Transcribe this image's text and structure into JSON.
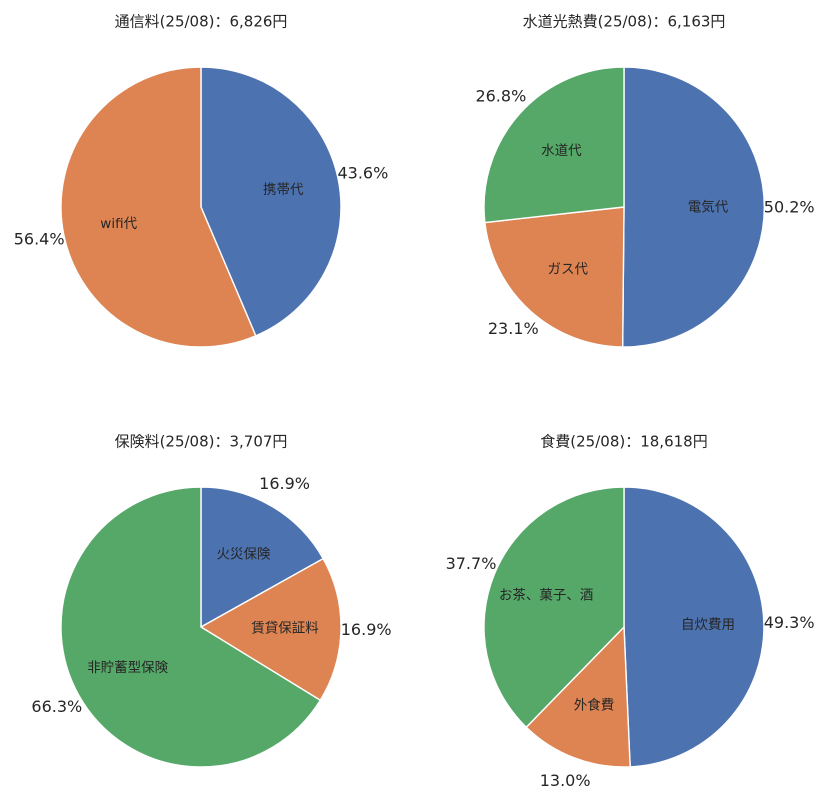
{
  "colors": {
    "blue": "#4c72b0",
    "orange": "#dd8452",
    "green": "#55a868"
  },
  "chart_data": [
    {
      "type": "pie",
      "title": "通信料(25/08)：6,826円",
      "slices": [
        {
          "label": "携帯代",
          "value": 43.6,
          "pct_label": "43.6%",
          "color": "#4c72b0"
        },
        {
          "label": "wifi代",
          "value": 56.4,
          "pct_label": "56.4%",
          "color": "#dd8452"
        }
      ]
    },
    {
      "type": "pie",
      "title": "水道光熱費(25/08)：6,163円",
      "slices": [
        {
          "label": "電気代",
          "value": 50.2,
          "pct_label": "50.2%",
          "color": "#4c72b0"
        },
        {
          "label": "ガス代",
          "value": 23.1,
          "pct_label": "23.1%",
          "color": "#dd8452"
        },
        {
          "label": "水道代",
          "value": 26.8,
          "pct_label": "26.8%",
          "color": "#55a868"
        }
      ]
    },
    {
      "type": "pie",
      "title": "保険料(25/08)：3,707円",
      "slices": [
        {
          "label": "火災保険",
          "value": 16.9,
          "pct_label": "16.9%",
          "color": "#4c72b0"
        },
        {
          "label": "賃貸保証料",
          "value": 16.9,
          "pct_label": "16.9%",
          "color": "#dd8452"
        },
        {
          "label": "非貯蓄型保険",
          "value": 66.3,
          "pct_label": "66.3%",
          "color": "#55a868"
        }
      ]
    },
    {
      "type": "pie",
      "title": "食費(25/08)：18,618円",
      "slices": [
        {
          "label": "自炊費用",
          "value": 49.3,
          "pct_label": "49.3%",
          "color": "#4c72b0"
        },
        {
          "label": "外食費",
          "value": 13.0,
          "pct_label": "13.0%",
          "color": "#dd8452"
        },
        {
          "label": "お茶、菓子、酒",
          "value": 37.7,
          "pct_label": "37.7%",
          "color": "#55a868"
        }
      ]
    }
  ]
}
